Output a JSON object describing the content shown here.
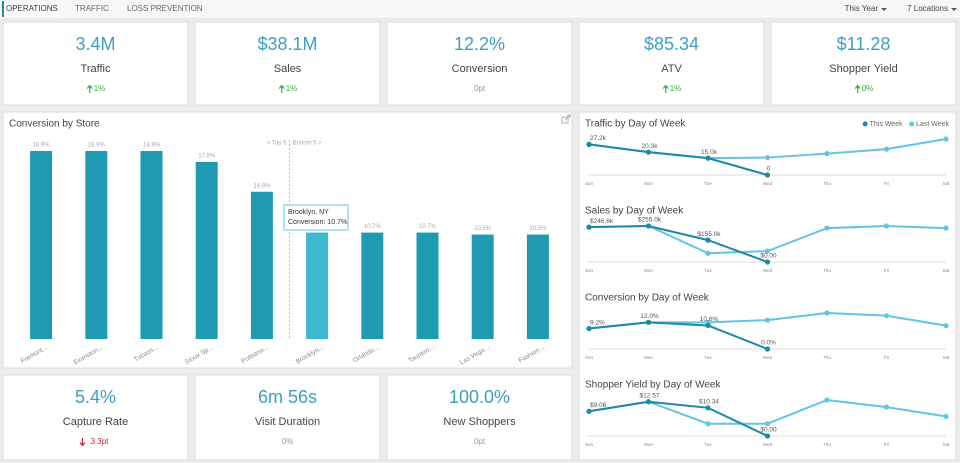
{
  "nav": {
    "tabs": [
      "OPERATIONS",
      "TRAFFIC",
      "LOSS PREVENTION"
    ],
    "active": 0
  },
  "filters": [
    "This Year",
    "7 Locations"
  ],
  "kpis": [
    {
      "value": "3.4M",
      "label": "Traffic",
      "change": "1%",
      "trend": "up"
    },
    {
      "value": "$38.1M",
      "label": "Sales",
      "change": "1%",
      "trend": "up"
    },
    {
      "value": "12.2%",
      "label": "Conversion",
      "change": "0pt",
      "trend": "none"
    },
    {
      "value": "$85.34",
      "label": "ATV",
      "change": "1%",
      "trend": "up"
    },
    {
      "value": "$11.28",
      "label": "Shopper Yield",
      "change": "0%",
      "trend": "up"
    }
  ],
  "bottom_kpis": [
    {
      "value": "5.4%",
      "label": "Capture Rate",
      "change": "3.3pt",
      "trend": "down"
    },
    {
      "value": "6m 56s",
      "label": "Visit Duration",
      "change": "0%",
      "trend": "none"
    },
    {
      "value": "100.0%",
      "label": "New Shoppers",
      "change": "0pt",
      "trend": "none"
    }
  ],
  "chart_data": [
    {
      "type": "bar",
      "title": "Conversion by Store",
      "categories": [
        "Fremont...",
        "Evanston...",
        "Tucson...",
        "Sioux Sp...",
        "Pottstow...",
        "Brooklyn...",
        "Orlando...",
        "Taunton...",
        "Las Vega...",
        "Fashion..."
      ],
      "values": [
        18.9,
        18.9,
        18.9,
        17.8,
        14.8,
        10.7,
        10.7,
        10.7,
        10.5,
        10.5
      ],
      "value_labels": [
        "18.9%",
        "18.9%",
        "18.9%",
        "17.8%",
        "14.8%",
        null,
        "10.7%",
        "10.7%",
        "10.5%",
        "10.5%"
      ],
      "colors": [
        "#1e9bb1",
        "#1e9bb1",
        "#1e9bb1",
        "#1e9bb1",
        "#1e9bb1",
        "#3cb8cf",
        "#1e9bb1",
        "#1e9bb1",
        "#1e9bb1",
        "#1e9bb1"
      ],
      "annotations": [
        "< Top 5",
        "Bottom 5 >"
      ],
      "tooltip": {
        "title": "Brooklyn, NY",
        "text": "Conversion: 10.7%"
      }
    },
    {
      "type": "line",
      "title": "Traffic by Day of Week",
      "categories": [
        "Sun",
        "Mon",
        "Tue",
        "Wed",
        "Thu",
        "Fri",
        "Sat"
      ],
      "legend": "top-right",
      "series": [
        {
          "name": "This Week",
          "color": "#1a8aa6",
          "values": [
            27200,
            20300,
            15000,
            0,
            null,
            null,
            null
          ],
          "value_labels": [
            "27.2k",
            "20.3k",
            "15.0k",
            "0",
            null,
            null,
            null
          ]
        },
        {
          "name": "Last Week",
          "color": "#62c6e2",
          "values": [
            27200,
            20300,
            15000,
            15500,
            19000,
            23000,
            32000
          ]
        }
      ]
    },
    {
      "type": "line",
      "title": "Sales by Day of Week",
      "categories": [
        "Sun",
        "Mon",
        "Tue",
        "Wed",
        "Thu",
        "Fri",
        "Sat"
      ],
      "series": [
        {
          "color": "#1a8aa6",
          "values": [
            246600,
            255000,
            155000,
            0,
            null,
            null,
            null
          ],
          "value_labels": [
            "$246.6k",
            "$255.0k",
            "$155.0k",
            "$0.00",
            null,
            null,
            null
          ]
        },
        {
          "color": "#62c6e2",
          "values": [
            246600,
            255000,
            62000,
            77000,
            240000,
            255000,
            240000
          ]
        }
      ]
    },
    {
      "type": "line",
      "title": "Conversion by Day of Week",
      "categories": [
        "Sun",
        "Mon",
        "Tue",
        "Wed",
        "Thu",
        "Fri",
        "Sat"
      ],
      "series": [
        {
          "color": "#1a8aa6",
          "values": [
            9.2,
            12.0,
            10.6,
            0.0,
            null,
            null,
            null
          ],
          "value_labels": [
            "9.2%",
            "12.0%",
            "10.6%",
            "0.0%",
            null,
            null,
            null
          ]
        },
        {
          "color": "#62c6e2",
          "values": [
            9.2,
            12.0,
            12.0,
            13.0,
            16.2,
            15.0,
            10.5
          ]
        }
      ]
    },
    {
      "type": "line",
      "title": "Shopper Yield by Day of Week",
      "categories": [
        "Sun",
        "Mon",
        "Tue",
        "Wed",
        "Thu",
        "Fri",
        "Sat"
      ],
      "series": [
        {
          "color": "#1a8aa6",
          "values": [
            9.06,
            12.57,
            10.34,
            0,
            null,
            null,
            null
          ],
          "value_labels": [
            "$9.06",
            "$12.57",
            "$10.34",
            "$0.00",
            null,
            null,
            null
          ]
        },
        {
          "color": "#62c6e2",
          "values": [
            9.06,
            12.57,
            4.5,
            4.5,
            13.2,
            10.6,
            7.2
          ]
        }
      ]
    }
  ]
}
